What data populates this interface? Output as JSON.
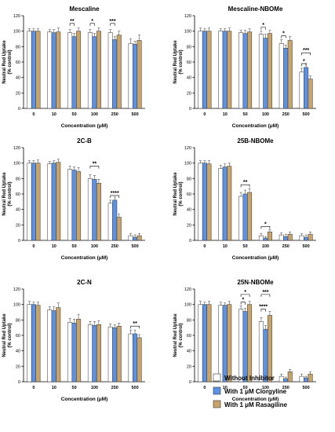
{
  "chart_data": [
    {
      "type": "bar",
      "title": "Mescaline",
      "xlabel": "Concentration (μM)",
      "ylabel": [
        "Neutral Red Uptake",
        "(% control)"
      ],
      "ylim": [
        0,
        120
      ],
      "yticks": [
        0,
        20,
        40,
        60,
        80,
        100,
        120
      ],
      "categories": [
        "0",
        "10",
        "50",
        "100",
        "250",
        "500"
      ],
      "series": [
        {
          "name": "Without Inhibitor",
          "values": [
            100,
            99,
            98,
            98,
            98,
            84
          ]
        },
        {
          "name": "With 1 μM Clorgyline",
          "values": [
            100,
            98,
            93,
            93,
            89,
            83
          ]
        },
        {
          "name": "With 1 μM Rasagiline",
          "values": [
            100,
            99,
            100,
            100,
            95,
            88
          ]
        }
      ],
      "errors": [
        [
          3,
          3,
          4,
          4,
          4,
          6
        ],
        [
          3,
          4,
          4,
          4,
          4,
          4
        ],
        [
          3,
          5,
          4,
          4,
          5,
          7
        ]
      ],
      "brackets": [
        {
          "cat": 2,
          "from": 0,
          "to": 1,
          "y": 110,
          "label": "**"
        },
        {
          "cat": 3,
          "from": 0,
          "to": 1,
          "y": 110,
          "label": "*"
        },
        {
          "cat": 4,
          "from": 0,
          "to": 1,
          "y": 110,
          "label": "***"
        }
      ]
    },
    {
      "type": "bar",
      "title": "Mescaline-NBOMe",
      "xlabel": "Concentration (μM)",
      "ylabel": [
        "Neutral Red Uptake",
        "(% control)"
      ],
      "ylim": [
        0,
        120
      ],
      "yticks": [
        0,
        20,
        40,
        60,
        80,
        100,
        120
      ],
      "categories": [
        "0",
        "10",
        "50",
        "100",
        "250",
        "500"
      ],
      "series": [
        {
          "name": "Without Inhibitor",
          "values": [
            100,
            100,
            98,
            96,
            84,
            47
          ]
        },
        {
          "name": "With 1 μM Clorgyline",
          "values": [
            100,
            100,
            97,
            91,
            78,
            53
          ]
        },
        {
          "name": "With 1 μM Rasagiline",
          "values": [
            100,
            100,
            99,
            97,
            88,
            38
          ]
        }
      ],
      "errors": [
        [
          4,
          3,
          3,
          4,
          5,
          5
        ],
        [
          3,
          3,
          4,
          5,
          4,
          5
        ],
        [
          4,
          4,
          4,
          4,
          5,
          4
        ]
      ],
      "brackets": [
        {
          "cat": 3,
          "from": 0,
          "to": 1,
          "y": 105,
          "label": "*"
        },
        {
          "cat": 4,
          "from": 0,
          "to": 1,
          "y": 94,
          "label": "*"
        },
        {
          "cat": 5,
          "from": 0,
          "to": 2,
          "y": 72,
          "label": "***"
        },
        {
          "cat": 5,
          "from": 0,
          "to": 1,
          "y": 58,
          "label": "*"
        }
      ]
    },
    {
      "type": "bar",
      "title": "2C-B",
      "xlabel": "Concentration (μM)",
      "ylabel": [
        "Neutral Red Uptake",
        "(% control)"
      ],
      "ylim": [
        0,
        120
      ],
      "yticks": [
        0,
        20,
        40,
        60,
        80,
        100,
        120
      ],
      "categories": [
        "0",
        "10",
        "50",
        "100",
        "250",
        "500"
      ],
      "series": [
        {
          "name": "Without Inhibitor",
          "values": [
            100,
            99,
            92,
            80,
            48,
            6
          ]
        },
        {
          "name": "With 1 μM Clorgyline",
          "values": [
            100,
            100,
            91,
            79,
            52,
            4
          ]
        },
        {
          "name": "With 1 μM Rasagiline",
          "values": [
            100,
            101,
            89,
            74,
            30,
            6
          ]
        }
      ],
      "errors": [
        [
          3,
          3,
          4,
          5,
          4,
          3
        ],
        [
          3,
          3,
          4,
          5,
          4,
          3
        ],
        [
          4,
          4,
          5,
          5,
          4,
          3
        ]
      ],
      "brackets": [
        {
          "cat": 3,
          "from": 0,
          "to": 2,
          "y": 96,
          "label": "**"
        },
        {
          "cat": 4,
          "from": 0,
          "to": 2,
          "y": 58,
          "label": "****"
        }
      ]
    },
    {
      "type": "bar",
      "title": "25B-NBOMe",
      "xlabel": "Concentration (μM)",
      "ylabel": [
        "Neutral Red Uptake",
        "(% control)"
      ],
      "ylim": [
        0,
        120
      ],
      "yticks": [
        0,
        20,
        40,
        60,
        80,
        100,
        120
      ],
      "categories": [
        "0",
        "10",
        "50",
        "100",
        "250",
        "500"
      ],
      "series": [
        {
          "name": "Without Inhibitor",
          "values": [
            100,
            93,
            57,
            6,
            7,
            6
          ]
        },
        {
          "name": "With 1 μM Clorgyline",
          "values": [
            100,
            95,
            60,
            3,
            5,
            4
          ]
        },
        {
          "name": "With 1 μM Rasagiline",
          "values": [
            99,
            96,
            62,
            11,
            8,
            8
          ]
        }
      ],
      "errors": [
        [
          3,
          4,
          5,
          3,
          3,
          3
        ],
        [
          3,
          4,
          5,
          2,
          3,
          3
        ],
        [
          4,
          4,
          5,
          3,
          3,
          3
        ]
      ],
      "brackets": [
        {
          "cat": 2,
          "from": 0,
          "to": 2,
          "y": 72,
          "label": "**"
        },
        {
          "cat": 3,
          "from": 0,
          "to": 2,
          "y": 18,
          "label": "*"
        }
      ]
    },
    {
      "type": "bar",
      "title": "2C-N",
      "xlabel": "Concentration (μM)",
      "ylabel": [
        "Neutral Red Uptake",
        "(% control)"
      ],
      "ylim": [
        0,
        120
      ],
      "yticks": [
        0,
        20,
        40,
        60,
        80,
        100,
        120
      ],
      "categories": [
        "0",
        "10",
        "50",
        "100",
        "250",
        "500"
      ],
      "series": [
        {
          "name": "Without Inhibitor",
          "values": [
            100,
            93,
            77,
            74,
            71,
            62
          ]
        },
        {
          "name": "With 1 μM Clorgyline",
          "values": [
            100,
            92,
            76,
            73,
            70,
            62
          ]
        },
        {
          "name": "With 1 μM Rasagiline",
          "values": [
            99,
            96,
            81,
            74,
            72,
            57
          ]
        }
      ],
      "errors": [
        [
          4,
          4,
          5,
          4,
          4,
          5
        ],
        [
          3,
          5,
          5,
          5,
          4,
          5
        ],
        [
          4,
          6,
          6,
          5,
          4,
          4
        ]
      ],
      "brackets": [
        {
          "cat": 5,
          "from": 0,
          "to": 2,
          "y": 72,
          "label": "**"
        }
      ]
    },
    {
      "type": "bar",
      "title": "25N-NBOMe",
      "xlabel": "Concentration (μM)",
      "ylabel": [
        "Neutral Red Uptake",
        "(% control)"
      ],
      "ylim": [
        0,
        120
      ],
      "yticks": [
        0,
        20,
        40,
        60,
        80,
        100,
        120
      ],
      "categories": [
        "0",
        "10",
        "50",
        "100",
        "250",
        "500"
      ],
      "series": [
        {
          "name": "Without Inhibitor",
          "values": [
            100,
            99,
            94,
            78,
            7,
            7
          ]
        },
        {
          "name": "With 1 μM Clorgyline",
          "values": [
            100,
            99,
            91,
            68,
            4,
            5
          ]
        },
        {
          "name": "With 1 μM Rasagiline",
          "values": [
            100,
            100,
            100,
            86,
            13,
            10
          ]
        }
      ],
      "errors": [
        [
          4,
          4,
          4,
          5,
          3,
          3
        ],
        [
          3,
          3,
          4,
          5,
          2,
          2
        ],
        [
          4,
          4,
          4,
          5,
          3,
          3
        ]
      ],
      "brackets": [
        {
          "cat": 2,
          "from": 0,
          "to": 2,
          "y": 113,
          "label": "*"
        },
        {
          "cat": 2,
          "from": 0,
          "to": 1,
          "y": 103,
          "label": "*"
        },
        {
          "cat": 3,
          "from": 0,
          "to": 2,
          "y": 113,
          "label": "***"
        },
        {
          "cat": 3,
          "from": 0,
          "to": 1,
          "y": 94,
          "label": "****"
        }
      ]
    }
  ],
  "legend": {
    "entries": [
      "Without Inhibitor",
      "With 1 μM Clorgyline",
      "With 1 μM Rasagiline"
    ]
  },
  "colors": {
    "series": [
      "#ffffff",
      "#5b92e5",
      "#c9a46a"
    ],
    "edge": "#333333"
  }
}
